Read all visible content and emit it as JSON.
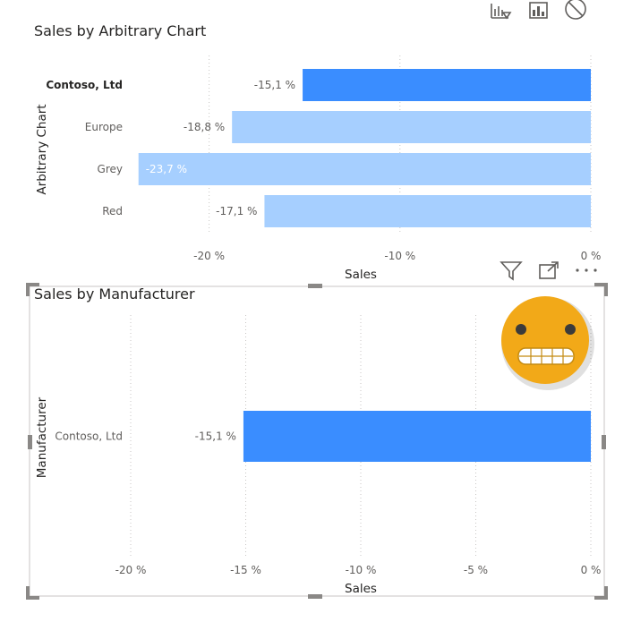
{
  "chart_data": [
    {
      "type": "bar",
      "orientation": "horizontal",
      "title": "Sales by Arbitrary Chart",
      "xlabel": "Sales",
      "ylabel": "Arbitrary Chart",
      "categories": [
        "Contoso, Ltd",
        "Europe",
        "Grey",
        "Red"
      ],
      "values": [
        -15.1,
        -18.8,
        -23.7,
        -17.1
      ],
      "value_labels": [
        "-15,1 %",
        "-18,8 %",
        "-23,7 %",
        "-17,1 %"
      ],
      "highlighted": [
        true,
        false,
        false,
        false
      ],
      "xticks": [
        -20,
        -10,
        0
      ],
      "xtick_labels": [
        "-20 %",
        "-10 %",
        "0 %"
      ],
      "xlim": [
        -25,
        0
      ],
      "grid": true,
      "colors": {
        "highlight": "#3a8dff",
        "faded": "#a6cfff"
      }
    },
    {
      "type": "bar",
      "orientation": "horizontal",
      "title": "Sales by Manufacturer",
      "xlabel": "Sales",
      "ylabel": "Manufacturer",
      "categories": [
        "Contoso, Ltd"
      ],
      "values": [
        -15.1
      ],
      "value_labels": [
        "-15,1 %"
      ],
      "xticks": [
        -20,
        -15,
        -10,
        -5,
        0
      ],
      "xtick_labels": [
        "-20 %",
        "-15 %",
        "-10 %",
        "-5 %",
        "0 %"
      ],
      "xlim": [
        -20,
        0
      ],
      "grid": true,
      "colors": {
        "bar": "#3a8dff"
      }
    }
  ],
  "toolbar_top": {
    "icons": [
      "drill-down-icon",
      "bar-chart-icon",
      "no-entry-icon"
    ]
  },
  "toolbar_bottom": {
    "icons": [
      "filter-icon",
      "focus-mode-icon",
      "more-options-icon"
    ]
  },
  "overlay": {
    "icon": "grimace-emoji-icon",
    "color": "#f2a918"
  }
}
